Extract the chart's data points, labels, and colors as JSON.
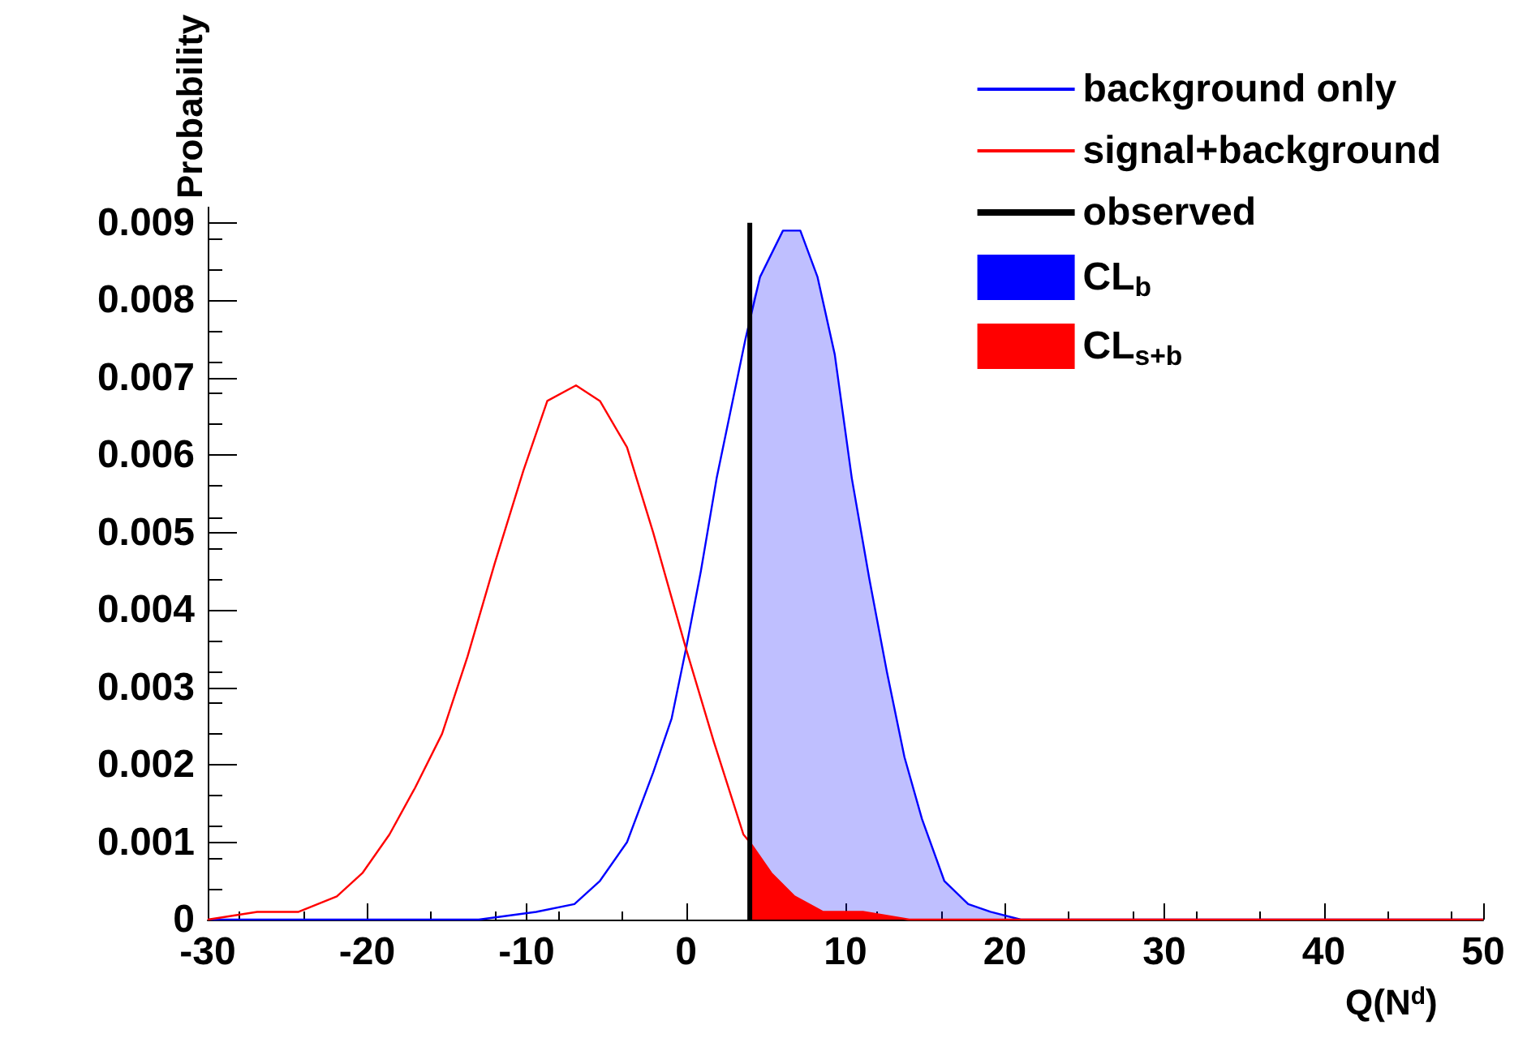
{
  "chart_data": {
    "type": "line",
    "xlabel": "Q(N$^{d}$)",
    "ylabel": "Probability",
    "xlim": [
      -30,
      50
    ],
    "xticks": [
      -30,
      -20,
      -10,
      0,
      10,
      20,
      30,
      40,
      50
    ],
    "ylim": [
      0,
      0.0092
    ],
    "yticks": [
      0,
      0.001,
      0.002,
      0.003,
      0.004,
      0.005,
      0.006,
      0.007,
      0.008,
      0.009
    ],
    "legend": "top right",
    "series": [
      {
        "name": "background only",
        "color": "#0000ff",
        "type": "line",
        "x": [
          -30,
          -13,
          -9.4,
          -7.0,
          -5.4,
          -3.7,
          -2.06,
          -0.9,
          0,
          0.93,
          1.92,
          3.73,
          4.64,
          6.08,
          7.17,
          8.25,
          9.33,
          10.4,
          11.5,
          12.6,
          13.7,
          14.8,
          16.2,
          17.7,
          19.1,
          21,
          50
        ],
        "values": [
          0,
          0,
          0.0001,
          0.0002,
          0.0005,
          0.001,
          0.0019,
          0.0026,
          0.0035,
          0.0045,
          0.0057,
          0.0075,
          0.0083,
          0.0089,
          0.0089,
          0.0083,
          0.0073,
          0.0057,
          0.0044,
          0.0032,
          0.0021,
          0.0013,
          0.0005,
          0.0002,
          0.0001,
          0,
          0
        ]
      },
      {
        "name": "signal+background",
        "color": "#ff0000",
        "type": "line",
        "x": [
          -30,
          -26.9,
          -24.3,
          -21.9,
          -20.3,
          -18.6,
          -17.0,
          -15.3,
          -13.7,
          -12.0,
          -10.2,
          -8.7,
          -6.9,
          -5.4,
          -3.7,
          -2.06,
          0,
          1.74,
          3.6,
          4,
          5.35,
          6.8,
          8.6,
          11.1,
          14,
          50
        ],
        "values": [
          0,
          0.0001,
          0.0001,
          0.0003,
          0.0006,
          0.0011,
          0.0017,
          0.0024,
          0.0034,
          0.0046,
          0.0058,
          0.0067,
          0.0069,
          0.0067,
          0.0061,
          0.005,
          0.0035,
          0.0023,
          0.0011,
          0.001,
          0.0006,
          0.0003,
          0.0001,
          0.0001,
          0,
          0
        ]
      },
      {
        "name": "observed",
        "color": "#000000",
        "type": "line",
        "x": [
          4,
          4
        ],
        "values": [
          0,
          0.009
        ]
      },
      {
        "name": "CL$_{b}$",
        "color": "#0000ff",
        "type": "area",
        "x": [
          4,
          4.64,
          6.08,
          7.17,
          8.25,
          9.33,
          10.4,
          11.5,
          12.6,
          13.7,
          14.8,
          16.2,
          17.7,
          19.1,
          21
        ],
        "values": [
          0.0079,
          0.0083,
          0.0089,
          0.0089,
          0.0083,
          0.0073,
          0.0057,
          0.0044,
          0.0032,
          0.0021,
          0.0013,
          0.0005,
          0.0002,
          0.0001,
          0
        ]
      },
      {
        "name": "CL$_{s+b}$",
        "color": "#ff0000",
        "type": "area",
        "x": [
          4,
          5.35,
          6.8,
          8.6,
          11.1,
          14
        ],
        "values": [
          0.001,
          0.0006,
          0.0003,
          0.0001,
          0.0001,
          0
        ]
      }
    ]
  }
}
